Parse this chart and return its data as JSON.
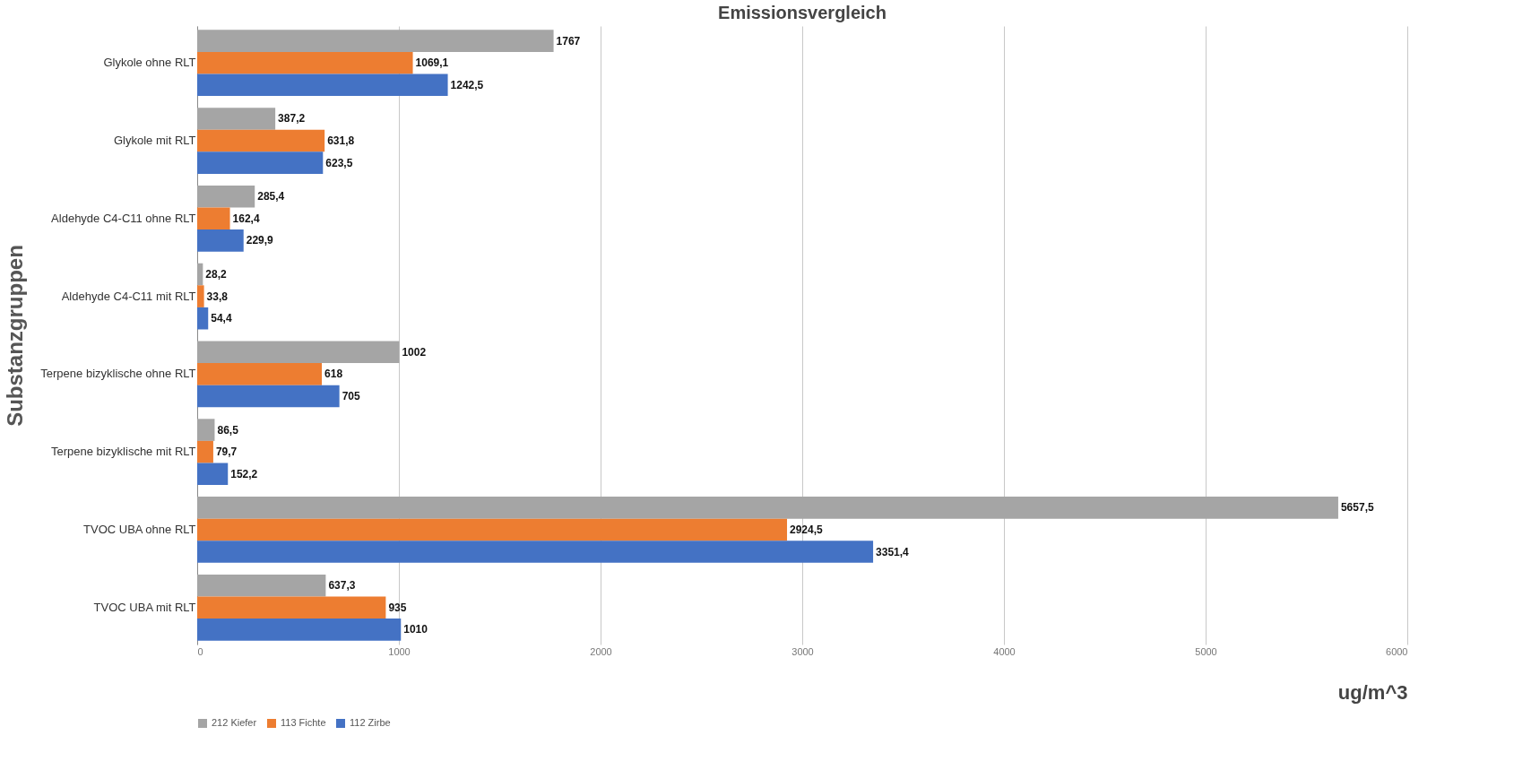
{
  "chart_data": {
    "type": "bar",
    "orientation": "horizontal",
    "title": "Emissionsvergleich",
    "xlabel": "ug/m^3",
    "ylabel": "Substanzgruppen",
    "categories": [
      "Glykole ohne RLT",
      "Glykole mit RLT",
      "Aldehyde C4-C11 ohne RLT",
      "Aldehyde C4-C11 mit RLT",
      "Terpene bizyklische ohne RLT",
      "Terpene bizyklische mit RLT",
      "TVOC UBA ohne RLT",
      "TVOC UBA mit RLT"
    ],
    "series": [
      {
        "name": "212 Kiefer",
        "color": "#a5a5a5",
        "values": [
          1767,
          387.2,
          285.4,
          28.2,
          1002,
          86.5,
          5657.5,
          637.3
        ],
        "value_labels": [
          "1767",
          "387,2",
          "285,4",
          "28,2",
          "1002",
          "86,5",
          "5657,5",
          "637,3"
        ]
      },
      {
        "name": "113 Fichte",
        "color": "#ed7d31",
        "values": [
          1069.1,
          631.8,
          162.4,
          33.8,
          618,
          79.7,
          2924.5,
          935
        ],
        "value_labels": [
          "1069,1",
          "631,8",
          "162,4",
          "33,8",
          "618",
          "79,7",
          "2924,5",
          "935"
        ]
      },
      {
        "name": "112 Zirbe",
        "color": "#4472c4",
        "values": [
          1242.5,
          623.5,
          229.9,
          54.4,
          705,
          152.2,
          3351.4,
          1010
        ],
        "value_labels": [
          "1242,5",
          "623,5",
          "229,9",
          "54,4",
          "705",
          "152,2",
          "3351,4",
          "1010"
        ]
      }
    ],
    "xlim": [
      0,
      6000
    ],
    "xticks": [
      0,
      1000,
      2000,
      3000,
      4000,
      5000,
      6000
    ],
    "grid": "x",
    "legend": "bottom"
  }
}
